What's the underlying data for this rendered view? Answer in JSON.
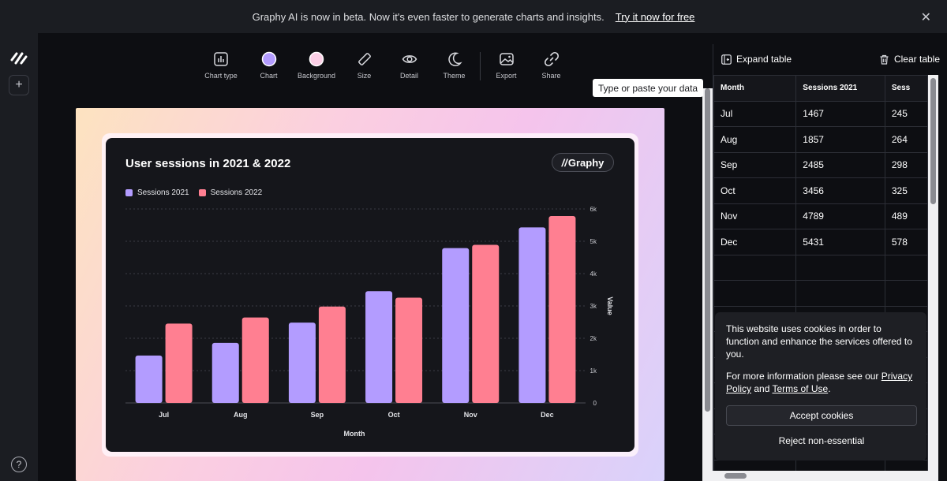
{
  "banner": {
    "message": "Graphy AI is now in beta. Now it's even faster to generate charts and insights.",
    "link": "Try it now for free"
  },
  "toolbar": {
    "items": [
      {
        "label": "Chart type",
        "icon": "chart-type-icon"
      },
      {
        "label": "Chart",
        "icon": "chart-color-swatch"
      },
      {
        "label": "Background",
        "icon": "background-color-swatch"
      },
      {
        "label": "Size",
        "icon": "ruler-icon"
      },
      {
        "label": "Detail",
        "icon": "eye-icon"
      },
      {
        "label": "Theme",
        "icon": "moon-icon"
      },
      {
        "label": "Export",
        "icon": "image-icon"
      },
      {
        "label": "Share",
        "icon": "link-icon"
      }
    ],
    "chart_swatch_color": "#b39cff",
    "background_swatch_color": "#fbcfe6"
  },
  "chart": {
    "brand": "Graphy"
  },
  "chart_data": {
    "type": "bar",
    "title": "User sessions in 2021 & 2022",
    "xlabel": "Month",
    "ylabel": "Value",
    "categories": [
      "Jul",
      "Aug",
      "Sep",
      "Oct",
      "Nov",
      "Dec"
    ],
    "series": [
      {
        "name": "Sessions 2021",
        "color": "#b39cff",
        "values": [
          1467,
          1857,
          2485,
          3456,
          4789,
          5431
        ]
      },
      {
        "name": "Sessions 2022",
        "color": "#ff7f91",
        "values": [
          2453,
          2642,
          2982,
          3256,
          4890,
          5782
        ]
      }
    ],
    "ylim": [
      0,
      6000
    ],
    "yticks": [
      "0",
      "1k",
      "2k",
      "3k",
      "4k",
      "5k",
      "6k"
    ],
    "legend": "top-left",
    "grid": true
  },
  "panel": {
    "expand_label": "Expand table",
    "clear_label": "Clear table",
    "tooltip": "Type or paste your data"
  },
  "table": {
    "headers": [
      "Month",
      "Sessions 2021",
      "Sess"
    ],
    "rows": [
      [
        "Jul",
        "1467",
        "245"
      ],
      [
        "Aug",
        "1857",
        "264"
      ],
      [
        "Sep",
        "2485",
        "298"
      ],
      [
        "Oct",
        "3456",
        "325"
      ],
      [
        "Nov",
        "4789",
        "489"
      ],
      [
        "Dec",
        "5431",
        "578"
      ]
    ]
  },
  "cookie": {
    "text1": "This website uses cookies in order to function and enhance the services offered to you.",
    "text2_prefix": "For more information please see our ",
    "privacy_link": "Privacy Policy",
    "and": " and ",
    "terms_link": "Terms of Use",
    "period": ".",
    "accept": "Accept cookies",
    "reject": "Reject non-essential"
  }
}
